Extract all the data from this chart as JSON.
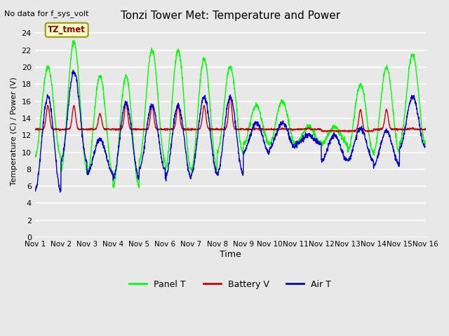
{
  "title": "Tonzi Tower Met: Temperature and Power",
  "top_left_text": "No data for f_sys_volt",
  "xlabel": "Time",
  "ylabel": "Temperature (C) / Power (V)",
  "ylim": [
    0,
    25
  ],
  "yticks": [
    0,
    2,
    4,
    6,
    8,
    10,
    12,
    14,
    16,
    18,
    20,
    22,
    24
  ],
  "xtick_labels": [
    "Nov 1",
    "Nov 2",
    "Nov 3",
    "Nov 4",
    "Nov 5",
    "Nov 6",
    "Nov 7",
    "Nov 8",
    "Nov 9",
    "Nov 10",
    "Nov 11",
    "Nov 12",
    "Nov 13",
    "Nov 14",
    "Nov 15",
    "Nov 16"
  ],
  "annotation_text": "TZ_tmet",
  "background_color": "#e8e8e8",
  "plot_bg_color": "#e8e8e8",
  "grid_color": "white",
  "line_colors": {
    "panel_t": "#00ff00",
    "battery_v": "#cc0000",
    "air_t": "#0000cc"
  },
  "legend_labels": [
    "Panel T",
    "Battery V",
    "Air T"
  ],
  "legend_colors": [
    "#00ff00",
    "#cc0000",
    "#0000cc"
  ]
}
